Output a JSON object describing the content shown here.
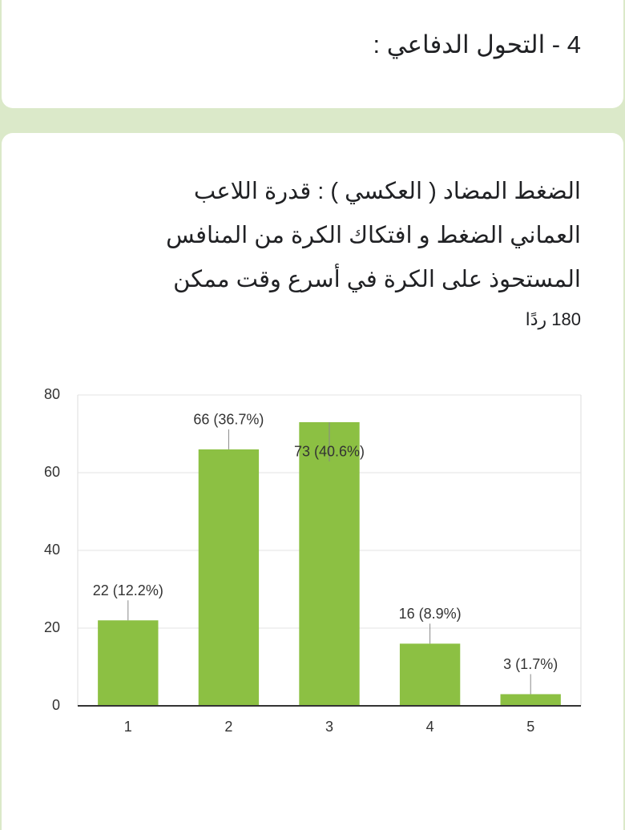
{
  "header": {
    "title": "4 - التحول الدفاعي :"
  },
  "question": {
    "title": "الضغط المضاد ( العكسي ) : قدرة اللاعب العماني الضغط و افتكاك الكرة من المنافس المستحوذ على الكرة في أسرع وقت ممكن",
    "responses": "180 ردًا"
  },
  "chart_data": {
    "type": "bar",
    "categories": [
      "1",
      "2",
      "3",
      "4",
      "5"
    ],
    "values": [
      22,
      66,
      73,
      16,
      3
    ],
    "value_labels": [
      "22 (12.2%)",
      "66 (36.7%)",
      "73 (40.6%)",
      "16 (8.9%)",
      "3 (1.7%)"
    ],
    "color": "#8cc043",
    "ylim": [
      0,
      80
    ],
    "yticks": [
      0,
      20,
      40,
      60,
      80
    ],
    "grid": true
  }
}
